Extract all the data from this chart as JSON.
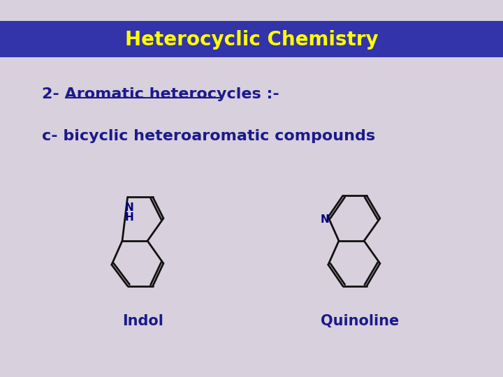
{
  "title": "Heterocyclic Chemistry",
  "title_color": "#FFFF00",
  "title_bg_color": "#3333AA",
  "bg_color": "#D8D0DC",
  "text1": "2- Aromatic heterocycles :-",
  "text2": "c- bicyclic heteroaromatic compounds",
  "text_color": "#1A1A8C",
  "label_indol": "Indol",
  "label_quinoline": "Quinoline",
  "molecule_color": "#111111",
  "N_color": "#000080"
}
